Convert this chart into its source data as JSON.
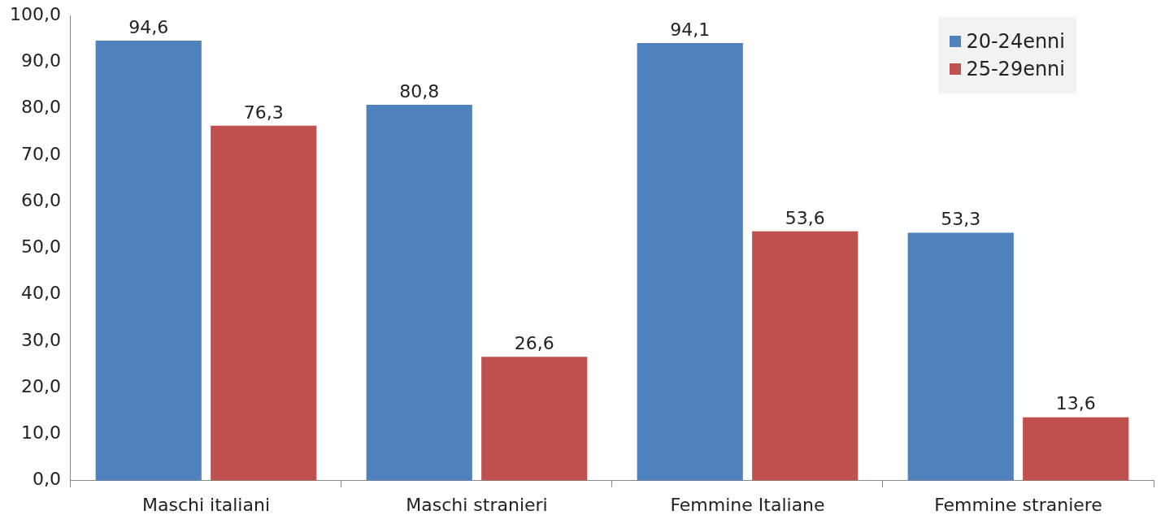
{
  "chart_data": {
    "type": "bar",
    "categories": [
      "Maschi italiani",
      "Maschi stranieri",
      "Femmine Italiane",
      "Femmine straniere"
    ],
    "series": [
      {
        "name": "20-24enni",
        "color": "#4f81bd",
        "values": [
          94.6,
          80.8,
          94.1,
          53.3
        ],
        "value_labels": [
          "94,6",
          "80,8",
          "94,1",
          "53,3"
        ]
      },
      {
        "name": "25-29enni",
        "color": "#c0504d",
        "values": [
          76.3,
          26.6,
          53.6,
          13.6
        ],
        "value_labels": [
          "76,3",
          "26,6",
          "53,6",
          "13,6"
        ]
      }
    ],
    "ylim": [
      0,
      100
    ],
    "yticks": [
      {
        "value": 0,
        "label": "0,0"
      },
      {
        "value": 10,
        "label": "10,0"
      },
      {
        "value": 20,
        "label": "20,0"
      },
      {
        "value": 30,
        "label": "30,0"
      },
      {
        "value": 40,
        "label": "40,0"
      },
      {
        "value": 50,
        "label": "50,0"
      },
      {
        "value": 60,
        "label": "60,0"
      },
      {
        "value": 70,
        "label": "70,0"
      },
      {
        "value": 80,
        "label": "80,0"
      },
      {
        "value": 90,
        "label": "90,0"
      },
      {
        "value": 100,
        "label": "100,0"
      }
    ],
    "grid": false,
    "legend": "top right"
  }
}
